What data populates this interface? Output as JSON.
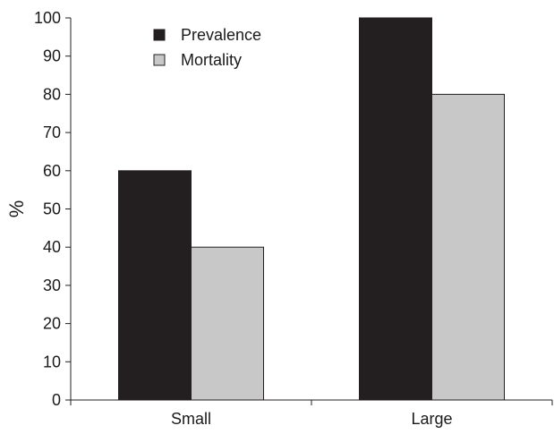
{
  "chart_data": {
    "type": "bar",
    "title": "",
    "xlabel": "",
    "ylabel": "%",
    "ylim": [
      0,
      100
    ],
    "yticks": [
      0,
      10,
      20,
      30,
      40,
      50,
      60,
      70,
      80,
      90,
      100
    ],
    "categories": [
      "Small",
      "Large"
    ],
    "series": [
      {
        "name": "Prevalence",
        "values": [
          60,
          100
        ],
        "color": "#231f20"
      },
      {
        "name": "Mortality",
        "values": [
          40,
          80
        ],
        "color": "#c8c8c8"
      }
    ],
    "grid": false,
    "legend_position": "top-left"
  }
}
